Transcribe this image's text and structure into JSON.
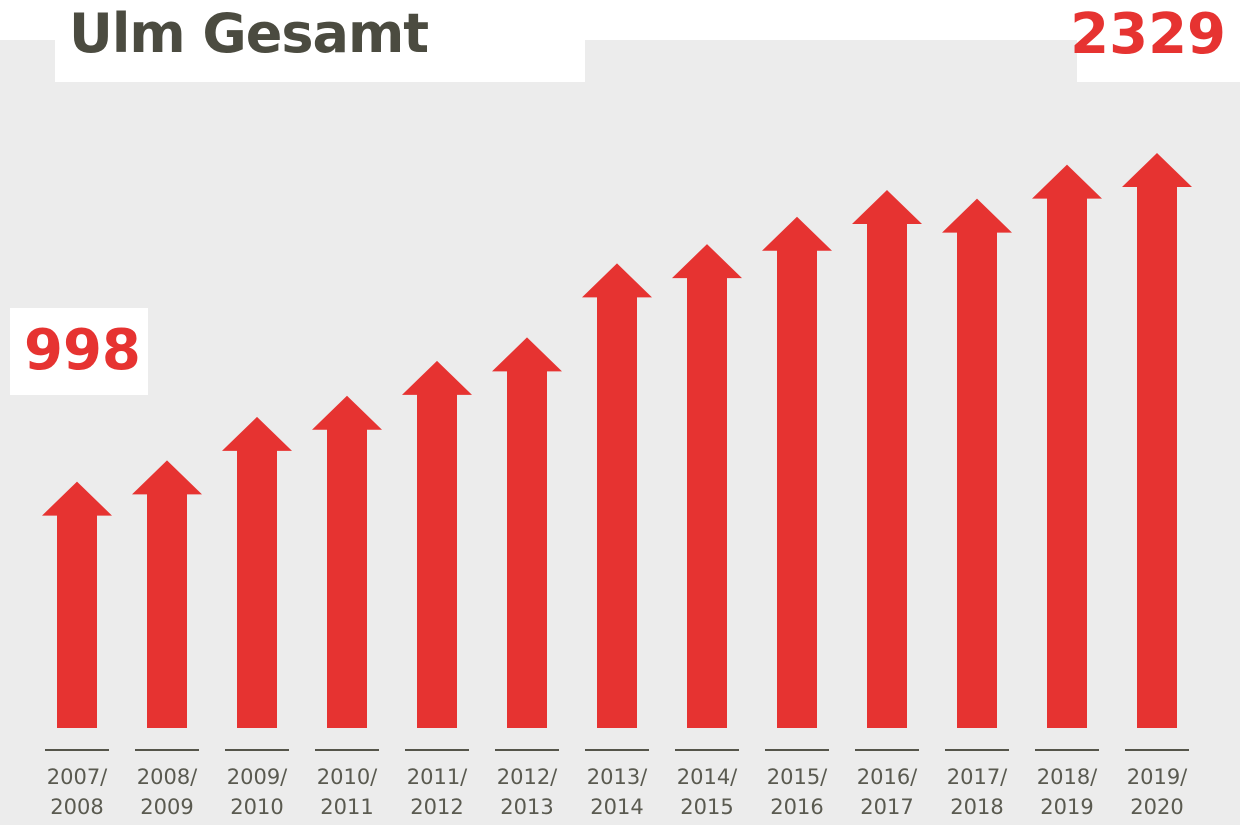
{
  "chart_data": {
    "type": "arrow-bar",
    "title": "Ulm Gesamt",
    "categories": [
      "2007/ 2008",
      "2008/ 2009",
      "2009/ 2010",
      "2010/ 2011",
      "2011/ 2012",
      "2012/ 2013",
      "2013/ 2014",
      "2014/ 2015",
      "2015/ 2016",
      "2016/ 2017",
      "2017/ 2018",
      "2018/ 2019",
      "2019/ 2020"
    ],
    "values": [
      998,
      1084,
      1260,
      1346,
      1487,
      1582,
      1882,
      1960,
      2071,
      2179,
      2144,
      2282,
      2329
    ],
    "color": "#e63331"
  }
}
